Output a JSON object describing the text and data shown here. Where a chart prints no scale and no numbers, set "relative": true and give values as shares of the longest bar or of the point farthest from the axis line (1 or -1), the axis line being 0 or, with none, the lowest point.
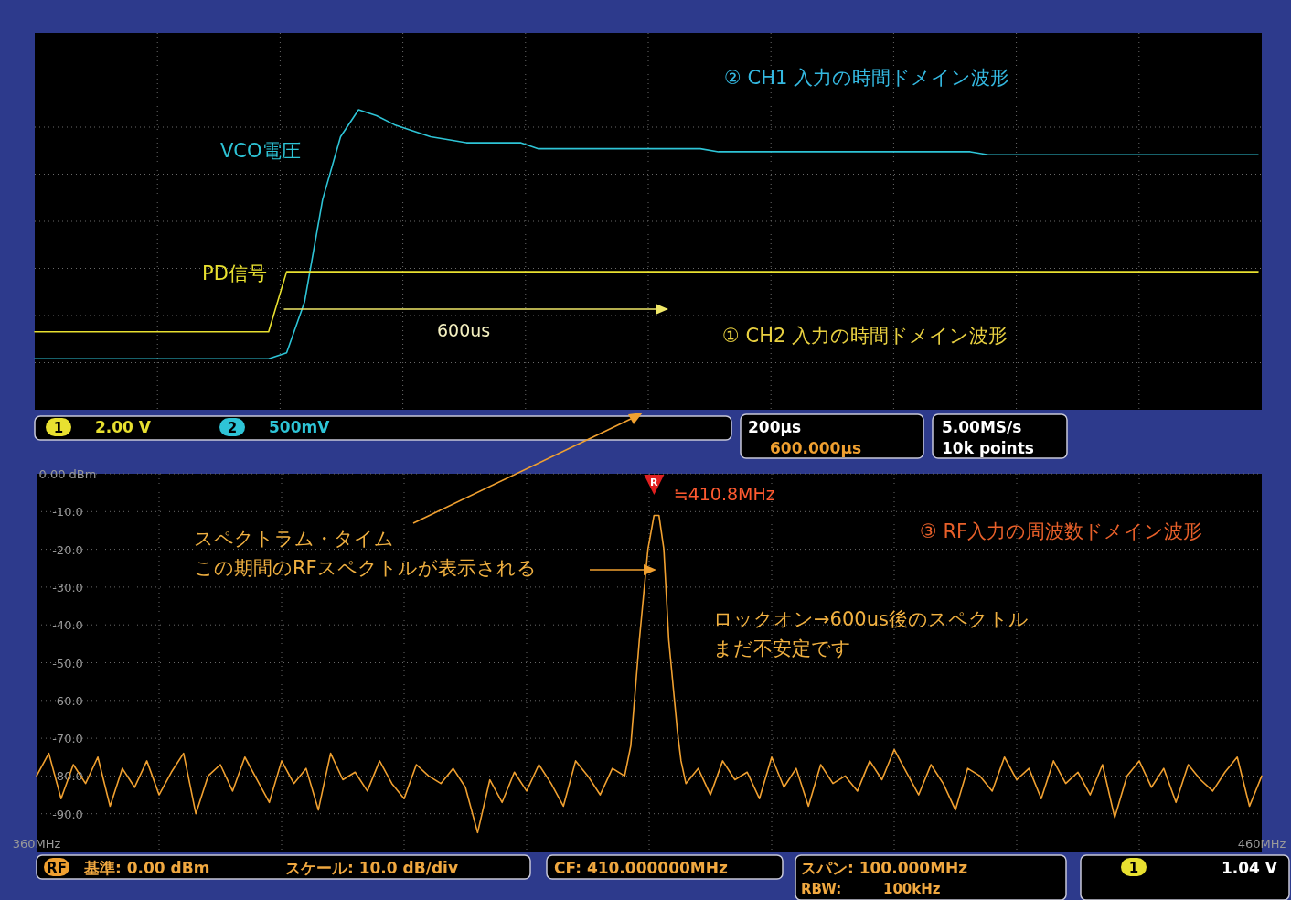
{
  "chart_data": [
    {
      "type": "line",
      "relative": true,
      "grid": true,
      "categories": [
        null,
        null,
        null,
        null,
        null,
        null,
        null,
        null,
        null,
        null,
        null,
        null,
        null,
        null,
        null,
        null,
        null,
        null,
        null,
        null,
        null,
        null,
        null,
        null,
        null,
        null,
        null,
        null,
        null,
        null,
        null,
        null,
        null,
        null,
        null,
        null,
        null,
        null,
        null,
        null,
        null,
        null,
        null,
        null,
        null,
        null,
        null,
        null,
        null,
        null,
        null,
        null,
        null,
        null,
        null,
        null,
        null,
        null,
        null,
        null,
        null,
        null,
        null,
        null,
        null,
        null,
        null,
        null,
        null
      ],
      "series": [
        {
          "name": "VCO電圧",
          "color": "#2ec4d6",
          "values": [
            0.17,
            0.17,
            0.17,
            0.17,
            0.17,
            0.17,
            0.17,
            0.17,
            0.17,
            0.17,
            0.17,
            0.17,
            0.17,
            0.17,
            0.19,
            0.36,
            0.7,
            0.91,
            1,
            0.98,
            0.95,
            0.93,
            0.91,
            0.9,
            0.89,
            0.89,
            0.89,
            0.89,
            0.87,
            0.87,
            0.87,
            0.87,
            0.87,
            0.87,
            0.87,
            0.87,
            0.87,
            0.87,
            0.86,
            0.86,
            0.86,
            0.86,
            0.86,
            0.86,
            0.86,
            0.86,
            0.86,
            0.86,
            0.86,
            0.86,
            0.86,
            0.86,
            0.86,
            0.85,
            0.85,
            0.85,
            0.85,
            0.85,
            0.85,
            0.85,
            0.85,
            0.85,
            0.85,
            0.85,
            0.85,
            0.85,
            0.85,
            0.85,
            0.85
          ]
        },
        {
          "name": "PD信号",
          "color": "#e8e030",
          "values": [
            0.26,
            0.26,
            0.26,
            0.26,
            0.26,
            0.26,
            0.26,
            0.26,
            0.26,
            0.26,
            0.26,
            0.26,
            0.26,
            0.26,
            0.46,
            0.46,
            0.46,
            0.46,
            0.46,
            0.46,
            0.46,
            0.46,
            0.46,
            0.46,
            0.46,
            0.46,
            0.46,
            0.46,
            0.46,
            0.46,
            0.46,
            0.46,
            0.46,
            0.46,
            0.46,
            0.46,
            0.46,
            0.46,
            0.46,
            0.46,
            0.46,
            0.46,
            0.46,
            0.46,
            0.46,
            0.46,
            0.46,
            0.46,
            0.46,
            0.46,
            0.46,
            0.46,
            0.46,
            0.46,
            0.46,
            0.46,
            0.46,
            0.46,
            0.46,
            0.46,
            0.46,
            0.46,
            0.46,
            0.46,
            0.46,
            0.46,
            0.46,
            0.46,
            0.46
          ]
        }
      ],
      "annotations": [
        "② CH1 入力の時間ドメイン波形",
        "600us",
        "① CH2 入力の時間ドメイン波形",
        "1",
        "2.00 V",
        "2",
        "500mV",
        "200µs",
        "600.000µs",
        "5.00MS/s",
        "10k points"
      ]
    },
    {
      "type": "line",
      "grid": true,
      "xlim": [
        360,
        460
      ],
      "xticks": [
        {
          "value": 360,
          "label": "360MHz"
        },
        {
          "value": 460,
          "label": "460MHz"
        }
      ],
      "ylim": [
        -100,
        0
      ],
      "yticks": [
        {
          "value": 0,
          "label": "0.00 dBm"
        },
        {
          "value": -10,
          "label": "-10.0"
        },
        {
          "value": -20,
          "label": "-20.0"
        },
        {
          "value": -30,
          "label": "-30.0"
        },
        {
          "value": -40,
          "label": "-40.0"
        },
        {
          "value": -50,
          "label": "-50.0"
        },
        {
          "value": -60,
          "label": "-60.0"
        },
        {
          "value": -70,
          "label": "-70.0"
        },
        {
          "value": -80,
          "label": "-80.0"
        },
        {
          "value": -90,
          "label": "-90.0"
        }
      ],
      "x": [
        360,
        361,
        362,
        363,
        364,
        365,
        366,
        367,
        368,
        369,
        370,
        371,
        372,
        373,
        374,
        375,
        376,
        377,
        378,
        379,
        380,
        381,
        382,
        383,
        384,
        385,
        386,
        387,
        388,
        389,
        390,
        391,
        392,
        393,
        394,
        395,
        396,
        397,
        398,
        399,
        400,
        401,
        402,
        403,
        404,
        405,
        406,
        407,
        408,
        408.5,
        409.2,
        409.9,
        410.4,
        410.8,
        411.2,
        411.6,
        412.3,
        412.6,
        413,
        414,
        415,
        416,
        417,
        418,
        419,
        420,
        421,
        422,
        423,
        424,
        425,
        426,
        427,
        428,
        429,
        430,
        431,
        432,
        433,
        434,
        435,
        436,
        437,
        438,
        439,
        440,
        441,
        442,
        443,
        444,
        445,
        446,
        447,
        448,
        449,
        450,
        451,
        452,
        453,
        454,
        455,
        456,
        457,
        458,
        459,
        460
      ],
      "series": [
        {
          "color": "#f0a030",
          "values": [
            -80,
            -74,
            -86,
            -77,
            -82,
            -75,
            -88,
            -78,
            -83,
            -76,
            -85,
            -79,
            -74,
            -90,
            -80,
            -77,
            -84,
            -75,
            -81,
            -87,
            -76,
            -82,
            -78,
            -89,
            -74,
            -81,
            -79,
            -84,
            -76,
            -82,
            -86,
            -77,
            -80,
            -82,
            -78,
            -83,
            -95,
            -81,
            -87,
            -79,
            -84,
            -77,
            -82,
            -88,
            -76,
            -80,
            -85,
            -78,
            -80,
            -72,
            -44,
            -20,
            -11,
            -11,
            -20,
            -44,
            -68,
            -76,
            -82,
            -78,
            -85,
            -76,
            -81,
            -79,
            -86,
            -75,
            -83,
            -78,
            -88,
            -77,
            -82,
            -80,
            -84,
            -76,
            -81,
            -73,
            -79,
            -85,
            -77,
            -82,
            -89,
            -78,
            -80,
            -84,
            -75,
            -81,
            -78,
            -86,
            -76,
            -82,
            -79,
            -85,
            -77,
            -91,
            -80,
            -76,
            -83,
            -78,
            -87,
            -77,
            -81,
            -84,
            -79,
            -75,
            -88,
            -80
          ]
        }
      ],
      "annotations": [
        {
          "text": "≒410.8MHz",
          "x": 410.8,
          "y": -11
        },
        "R",
        "③ RF入力の周波数ドメイン波形",
        "スペクトラム・タイム",
        "この期間のRFスペクトルが表示される",
        "ロックオン→600us後のスペクトル",
        "まだ不安定です",
        "RF",
        "基準: 0.00 dBm",
        "スケール: 10.0 dB/div",
        "CF: 410.000000MHz",
        "スパン: 100.000MHz",
        "RBW:",
        "100kHz",
        "1",
        "1.04 V"
      ]
    }
  ]
}
